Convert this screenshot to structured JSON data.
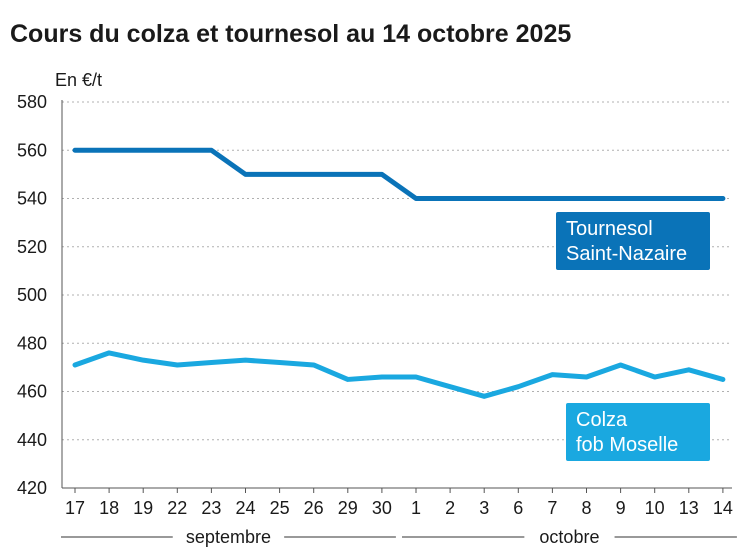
{
  "chart_data": {
    "type": "line",
    "title": "Cours du colza et tournesol au 14 octobre 2025",
    "ylabel": "En €/t",
    "ylim": [
      420,
      580
    ],
    "yticks": [
      420,
      440,
      460,
      480,
      500,
      520,
      540,
      560,
      580
    ],
    "categories": [
      "17",
      "18",
      "19",
      "22",
      "23",
      "24",
      "25",
      "26",
      "29",
      "30",
      "1",
      "2",
      "3",
      "6",
      "7",
      "8",
      "9",
      "10",
      "13",
      "14"
    ],
    "months": [
      {
        "label": "septembre",
        "from": 0,
        "to": 9
      },
      {
        "label": "octobre",
        "from": 10,
        "to": 19
      }
    ],
    "grid": true,
    "series": [
      {
        "name": "Tournesol Saint-Nazaire",
        "label_lines": [
          "Tournesol",
          "Saint-Nazaire"
        ],
        "color": "#0a73b8",
        "values": [
          560,
          560,
          560,
          560,
          560,
          550,
          550,
          550,
          550,
          550,
          540,
          540,
          540,
          540,
          540,
          540,
          540,
          540,
          540,
          540
        ]
      },
      {
        "name": "Colza fob Moselle",
        "label_lines": [
          "Colza",
          "fob Moselle"
        ],
        "color": "#1aa8e0",
        "values": [
          471,
          476,
          473,
          471,
          472,
          473,
          472,
          471,
          465,
          466,
          466,
          462,
          458,
          462,
          467,
          466,
          471,
          466,
          469,
          465
        ]
      }
    ]
  }
}
